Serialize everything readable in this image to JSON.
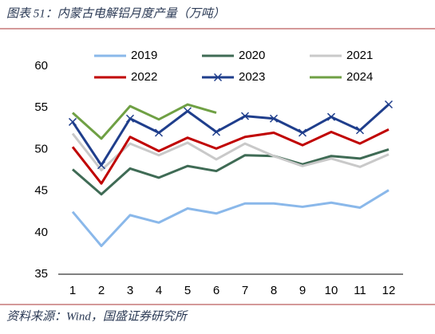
{
  "chart_data": {
    "type": "line",
    "title": "图表 51：内蒙古电解铝月度产量（万吨）",
    "source": "资料来源：Wind，国盛证券研究所",
    "categories": [
      "1",
      "2",
      "3",
      "4",
      "5",
      "6",
      "7",
      "8",
      "9",
      "10",
      "11",
      "12"
    ],
    "ylim": [
      35,
      60
    ],
    "yticks": [
      35,
      40,
      45,
      50,
      55,
      60
    ],
    "legend": "top",
    "series": [
      {
        "name": "2019",
        "color": "#8ab8ea",
        "values": [
          42.5,
          38.4,
          42.1,
          41.2,
          42.9,
          42.3,
          43.5,
          43.5,
          43.1,
          43.6,
          43.0,
          45.1
        ]
      },
      {
        "name": "2020",
        "color": "#3f6b55",
        "values": [
          47.6,
          44.6,
          47.7,
          46.6,
          48.0,
          47.4,
          49.3,
          49.2,
          48.2,
          49.2,
          48.9,
          50.0
        ]
      },
      {
        "name": "2021",
        "color": "#c9c9c9",
        "values": [
          51.9,
          47.5,
          50.7,
          49.3,
          50.8,
          48.8,
          50.7,
          49.2,
          48.0,
          48.9,
          47.9,
          49.4
        ]
      },
      {
        "name": "2022",
        "color": "#c00000",
        "values": [
          50.3,
          45.9,
          51.5,
          49.8,
          51.4,
          50.1,
          51.5,
          52.0,
          50.5,
          52.1,
          50.7,
          52.4
        ]
      },
      {
        "name": "2023",
        "color": "#1f3e8c",
        "marker": "x",
        "values": [
          53.3,
          48.1,
          53.7,
          52.0,
          54.6,
          52.1,
          54.0,
          53.7,
          52.0,
          53.9,
          52.3,
          55.4
        ]
      },
      {
        "name": "2024",
        "color": "#6fa044",
        "values": [
          54.4,
          51.3,
          55.2,
          53.6,
          55.4,
          54.4,
          null,
          null,
          null,
          null,
          null,
          null
        ]
      }
    ]
  }
}
